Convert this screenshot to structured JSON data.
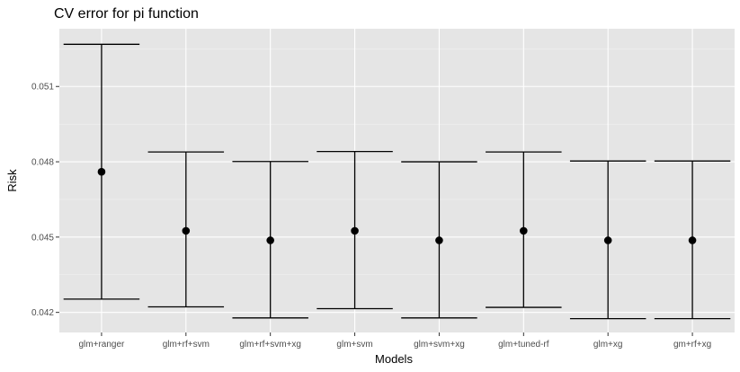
{
  "chart_data": {
    "type": "errorbar",
    "title": "CV error for pi function",
    "xlabel": "Models",
    "ylabel": "Risk",
    "categories": [
      "glm+ranger",
      "glm+rf+svm",
      "glm+rf+svm+xg",
      "glm+svm",
      "glm+svm+xg",
      "glm+tuned-rf",
      "glm+xg",
      "gm+rf+xg"
    ],
    "y": [
      0.0476,
      0.04525,
      0.04487,
      0.04525,
      0.04487,
      0.04525,
      0.04487,
      0.04487
    ],
    "ymin": [
      0.04253,
      0.04222,
      0.04178,
      0.04215,
      0.04178,
      0.0422,
      0.04175,
      0.04175
    ],
    "ymax": [
      0.05268,
      0.04839,
      0.04801,
      0.04841,
      0.048,
      0.04839,
      0.04803,
      0.04803
    ],
    "ylim": [
      0.0412,
      0.0533
    ],
    "yticks": [
      0.042,
      0.045,
      0.048,
      0.051
    ],
    "ytick_labels": [
      "0.042",
      "0.045",
      "0.048",
      "0.051"
    ],
    "grid": true,
    "legend": "none"
  }
}
